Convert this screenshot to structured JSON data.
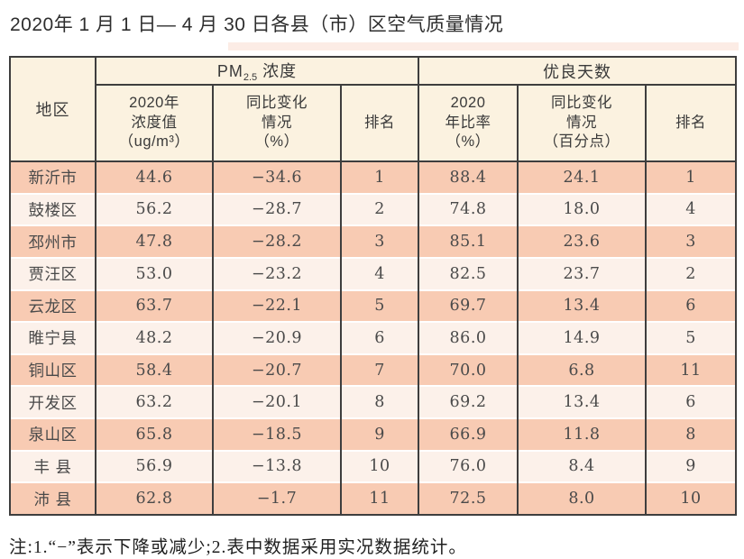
{
  "page": {
    "title": "2020年 1 月 1 日— 4 月 30 日各县（市）区空气质量情况",
    "note": "注:1.“−”表示下降或减少;2.表中数据采用实况数据统计。"
  },
  "table": {
    "region_header": "地区",
    "group_headers": {
      "pm25_prefix": "PM",
      "pm25_sub": "2.5",
      "pm25_suffix": " 浓度",
      "good_days": "优良天数"
    },
    "sub_headers": {
      "concentration": "2020年\n浓度值\n（ug/m³）",
      "pm_change": "同比变化\n情况\n（%）",
      "pm_rank": "排名",
      "ratio": "2020\n年比率\n（%）",
      "ratio_change": "同比变化\n情况\n（百分点）",
      "ratio_rank": "排名"
    },
    "rows": [
      {
        "region": "新沂市",
        "concentration": "44.6",
        "pm_change": "−34.6",
        "pm_rank": "1",
        "ratio": "88.4",
        "ratio_change": "24.1",
        "ratio_rank": "1"
      },
      {
        "region": "鼓楼区",
        "concentration": "56.2",
        "pm_change": "−28.7",
        "pm_rank": "2",
        "ratio": "74.8",
        "ratio_change": "18.0",
        "ratio_rank": "4"
      },
      {
        "region": "邳州市",
        "concentration": "47.8",
        "pm_change": "−28.2",
        "pm_rank": "3",
        "ratio": "85.1",
        "ratio_change": "23.6",
        "ratio_rank": "3"
      },
      {
        "region": "贾汪区",
        "concentration": "53.0",
        "pm_change": "−23.2",
        "pm_rank": "4",
        "ratio": "82.5",
        "ratio_change": "23.7",
        "ratio_rank": "2"
      },
      {
        "region": "云龙区",
        "concentration": "63.7",
        "pm_change": "−22.1",
        "pm_rank": "5",
        "ratio": "69.7",
        "ratio_change": "13.4",
        "ratio_rank": "6"
      },
      {
        "region": "睢宁县",
        "concentration": "48.2",
        "pm_change": "−20.9",
        "pm_rank": "6",
        "ratio": "86.0",
        "ratio_change": "14.9",
        "ratio_rank": "5"
      },
      {
        "region": "铜山区",
        "concentration": "58.4",
        "pm_change": "−20.7",
        "pm_rank": "7",
        "ratio": "70.0",
        "ratio_change": "6.8",
        "ratio_rank": "11"
      },
      {
        "region": "开发区",
        "concentration": "63.2",
        "pm_change": "−20.1",
        "pm_rank": "8",
        "ratio": "69.2",
        "ratio_change": "13.4",
        "ratio_rank": "6"
      },
      {
        "region": "泉山区",
        "concentration": "65.8",
        "pm_change": "−18.5",
        "pm_rank": "9",
        "ratio": "66.9",
        "ratio_change": "11.8",
        "ratio_rank": "8"
      },
      {
        "region": "丰 县",
        "concentration": "56.9",
        "pm_change": "−13.8",
        "pm_rank": "10",
        "ratio": "76.0",
        "ratio_change": "8.4",
        "ratio_rank": "9"
      },
      {
        "region": "沛 县",
        "concentration": "62.8",
        "pm_change": "−1.7",
        "pm_rank": "11",
        "ratio": "72.5",
        "ratio_change": "8.0",
        "ratio_rank": "10"
      }
    ]
  },
  "colors": {
    "row_salmon": "#f8cbb3",
    "row_light": "#fcf1ea",
    "header_cream": "#fbf2e0",
    "border": "#3e3e3e"
  }
}
